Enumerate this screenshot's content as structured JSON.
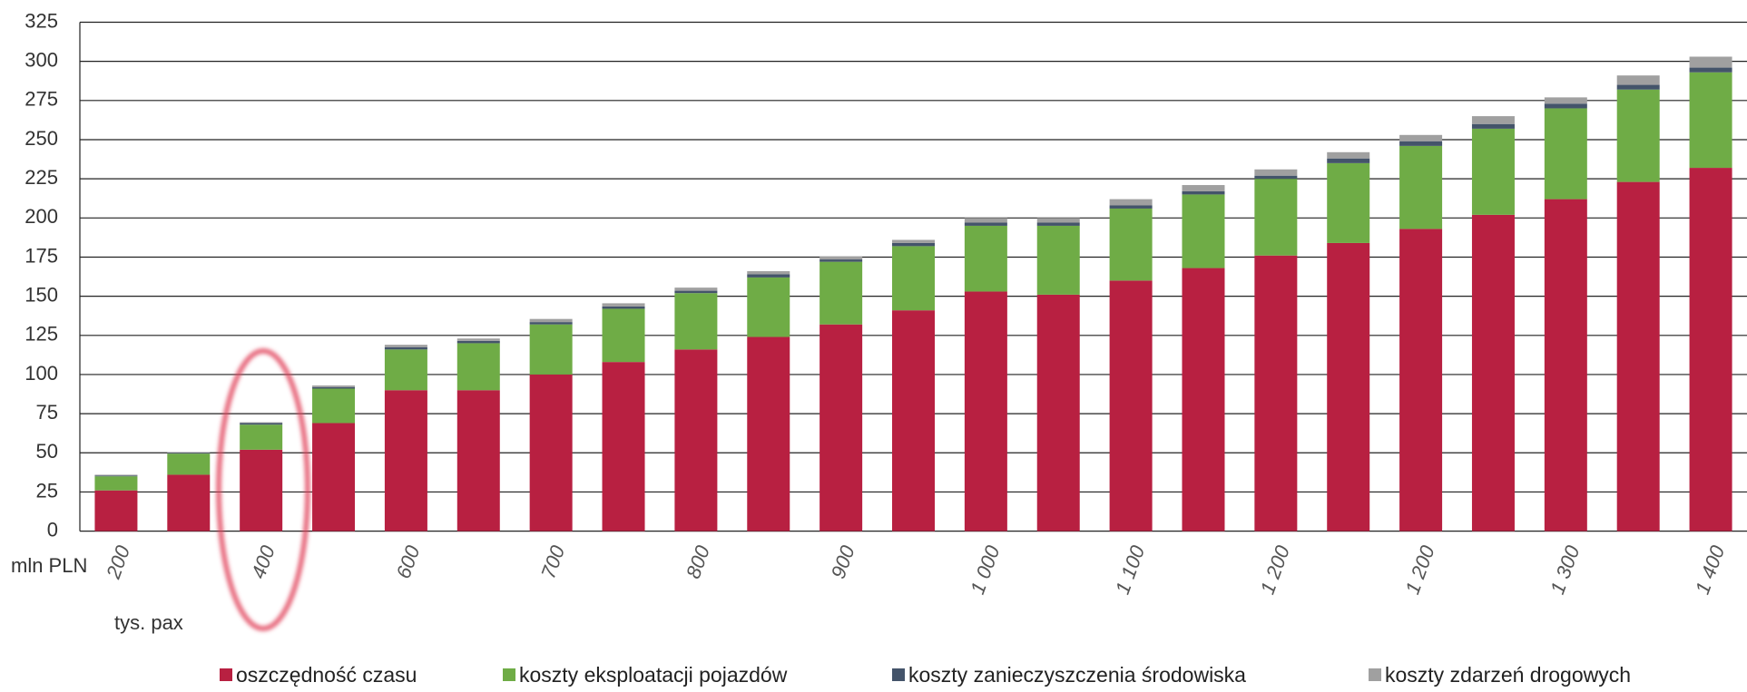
{
  "chart_data": {
    "type": "stacked_bar",
    "annotations": [
      "mln PLN",
      "tys. pax"
    ],
    "categories": [
      "200",
      null,
      "400",
      null,
      "600",
      null,
      "700",
      null,
      "800",
      null,
      "900",
      null,
      "1 000",
      null,
      "1 100",
      null,
      "1 200",
      null,
      "1 200",
      null,
      "1 300",
      null,
      "1 400"
    ],
    "series": [
      {
        "name": "oszczędność czasu",
        "color": "#b82041",
        "values": [
          26,
          36,
          52,
          69,
          90,
          90,
          100,
          108,
          116,
          124,
          132,
          141,
          153,
          151,
          160,
          168,
          176,
          184,
          193,
          202,
          212,
          223,
          232
        ]
      },
      {
        "name": "koszty eksploatacji pojazdów",
        "color": "#6fac46",
        "values": [
          9,
          13.5,
          16,
          22,
          26,
          30,
          32,
          34,
          36,
          38,
          40,
          41,
          42,
          44,
          46,
          47,
          49,
          51,
          53,
          55,
          58,
          59,
          61
        ]
      },
      {
        "name": "koszty zanieczyszczenia środowiska",
        "color": "#44546a",
        "values": [
          0.5,
          0.5,
          1,
          1,
          1.5,
          1.5,
          1.5,
          1.5,
          1.5,
          2,
          1.5,
          2,
          2,
          2,
          2,
          2,
          2,
          3,
          3,
          3,
          3,
          3,
          3
        ]
      },
      {
        "name": "koszty zdarzeń drogowych",
        "color": "#a0a0a0",
        "values": [
          0.5,
          0.5,
          0.5,
          1,
          1.5,
          1.5,
          2,
          2,
          2,
          2,
          2,
          2,
          3,
          3,
          4,
          4,
          4,
          4,
          4,
          5,
          4,
          6,
          7
        ]
      }
    ],
    "ylim": [
      0,
      325
    ],
    "yticks": [
      0,
      25,
      50,
      75,
      100,
      125,
      150,
      175,
      200,
      225,
      250,
      275,
      300,
      325
    ],
    "grid": true,
    "legend": "bottom"
  }
}
